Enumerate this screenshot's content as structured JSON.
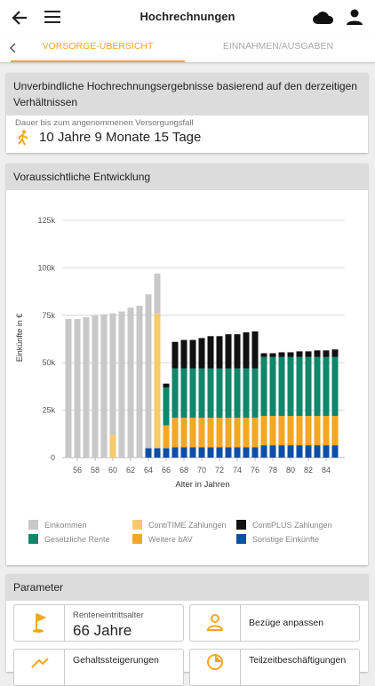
{
  "header": {
    "title": "Hochrechnungen"
  },
  "tabs": [
    "VORSORGE-ÜBERSICHT",
    "EINNAHMEN/AUSGABEN"
  ],
  "summary": {
    "title": "Unverbindliche Hochrechnungsergebnisse basierend auf den derzeitigen Verhältnissen",
    "label": "Dauer bis zum angenommenen Versorgungsfall",
    "value": "10 Jahre 9 Monate 15 Tage"
  },
  "development": {
    "title": "Voraussichtliche Entwicklung"
  },
  "chart_data": {
    "type": "stacked_bar",
    "ylabel": "Einkünfte in €",
    "xlabel": "Alter in Jahren",
    "categories": [
      null,
      "56",
      null,
      "58",
      null,
      "60",
      null,
      "62",
      null,
      "64",
      null,
      "66",
      null,
      "68",
      null,
      "70",
      null,
      "72",
      null,
      "74",
      null,
      "76",
      null,
      "78",
      null,
      "80",
      null,
      "82",
      null,
      "84",
      null
    ],
    "ylim": [
      0,
      125000
    ],
    "yticks": [
      0,
      {
        "value": 25000,
        "label": "25k"
      },
      {
        "value": 50000,
        "label": "50k"
      },
      {
        "value": 75000,
        "label": "75k"
      },
      {
        "value": 100000,
        "label": "100k"
      },
      {
        "value": 125000,
        "label": "125k"
      }
    ],
    "grid": true,
    "series": [
      {
        "name": "Sonstige Einkünfte",
        "color": "#0d4ea6",
        "values": [
          0,
          0,
          0,
          0,
          0,
          0,
          0,
          0,
          0,
          5000,
          5000,
          5000,
          5500,
          5500,
          5500,
          5500,
          5500,
          5500,
          5500,
          5500,
          5500,
          5500,
          6500,
          6500,
          6500,
          6500,
          6500,
          6500,
          6500,
          6500,
          6500
        ]
      },
      {
        "name": "Weitere bAV",
        "color": "#f5a623",
        "values": [
          0,
          0,
          0,
          0,
          0,
          0,
          0,
          0,
          0,
          0,
          0,
          12000,
          15500,
          15500,
          15500,
          15500,
          15500,
          15500,
          15500,
          15500,
          15500,
          15500,
          15500,
          15500,
          15500,
          15500,
          15500,
          15500,
          15500,
          15500,
          15500
        ]
      },
      {
        "name": "Gesetzliche Rente",
        "color": "#10866a",
        "values": [
          0,
          0,
          0,
          0,
          0,
          0,
          0,
          0,
          0,
          0,
          0,
          20000,
          26000,
          26000,
          26000,
          26000,
          26000,
          26000,
          26000,
          26000,
          26000,
          26000,
          31000,
          31000,
          31000,
          31000,
          31000,
          31000,
          31000,
          31000,
          31000
        ]
      },
      {
        "name": "ContiTIME Zahlungen",
        "color": "#f7c96b",
        "values": [
          0,
          0,
          0,
          0,
          0,
          12000,
          0,
          0,
          0,
          0,
          71000,
          0,
          0,
          0,
          0,
          0,
          0,
          0,
          0,
          0,
          0,
          0,
          0,
          0,
          0,
          0,
          0,
          0,
          0,
          0,
          0
        ]
      },
      {
        "name": "Einkommen",
        "color": "#c8c8c8",
        "values": [
          73000,
          73000,
          74000,
          75000,
          75500,
          64000,
          77000,
          79000,
          80000,
          81000,
          21000,
          0,
          0,
          0,
          0,
          0,
          0,
          0,
          0,
          0,
          0,
          0,
          0,
          0,
          0,
          0,
          0,
          0,
          0,
          0,
          0
        ]
      },
      {
        "name": "ContiPLUS Zahlungen",
        "color": "#111111",
        "values": [
          0,
          0,
          0,
          0,
          0,
          0,
          0,
          0,
          0,
          0,
          0,
          2000,
          14000,
          15000,
          15000,
          16000,
          17000,
          17000,
          18000,
          18000,
          19000,
          19500,
          2000,
          2000,
          2500,
          2500,
          3000,
          3000,
          3500,
          3500,
          4000
        ]
      }
    ]
  },
  "legend_order": [
    4,
    3,
    5,
    2,
    1,
    0
  ],
  "parameter": {
    "title": "Parameter",
    "items": [
      {
        "label": "Renteneintrittsalter",
        "value": "66 Jahre"
      },
      {
        "label": "Bezüge anpassen"
      },
      {
        "label": "Gehaltssteigerungen"
      },
      {
        "label": "Teilzeitbeschäftigungen"
      }
    ]
  }
}
